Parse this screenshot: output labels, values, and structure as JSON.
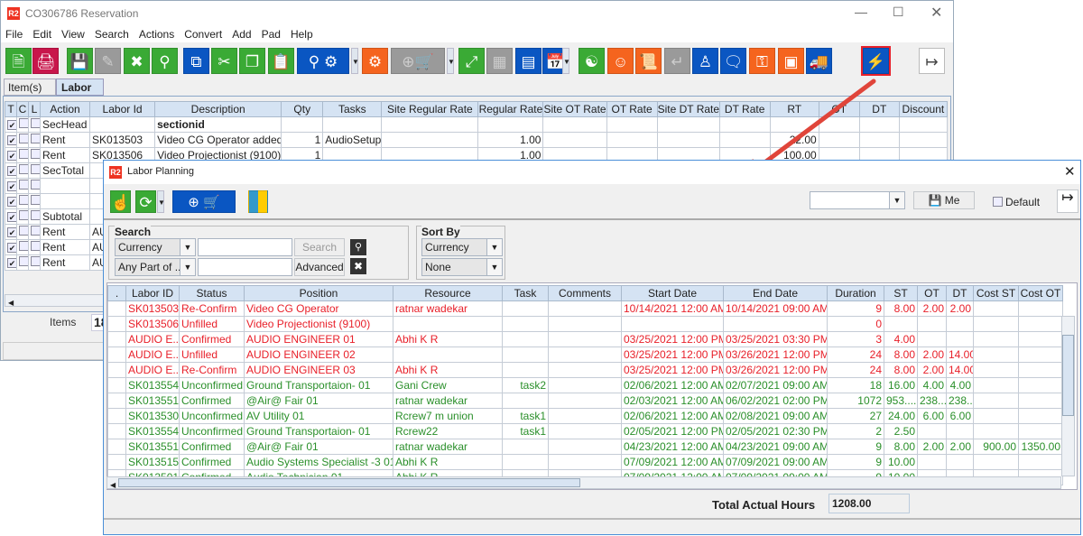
{
  "main_window": {
    "title": "CO306786 Reservation",
    "logo": "R2",
    "menu": [
      "File",
      "Edit",
      "View",
      "Search",
      "Actions",
      "Convert",
      "Add",
      "Pad",
      "Help"
    ],
    "toolbar_icons": [
      "new-document",
      "print",
      "save",
      "edit",
      "delete",
      "search",
      "copy-zero",
      "cut",
      "copy",
      "paste",
      "search-crew",
      "gears",
      "add-po-cart",
      "expand",
      "grid",
      "message",
      "calendar",
      "hierarchy",
      "smiley",
      "scroll",
      "return",
      "worker",
      "chat-zero",
      "coins-add",
      "safe",
      "delivery-truck",
      "lightning",
      "exit"
    ],
    "tabs": [
      "Item(s)",
      "Labor"
    ],
    "active_tab": "Labor",
    "table": {
      "columns": [
        "T",
        "C",
        "L",
        "Action",
        "Labor Id",
        "Description",
        "Qty",
        "Tasks",
        "Site Regular Rate",
        "Regular Rate",
        "Site OT Rate",
        "OT Rate",
        "Site DT Rate",
        "DT Rate",
        "RT",
        "OT",
        "DT",
        "Discount"
      ],
      "rows": [
        {
          "t": true,
          "action": "SecHead",
          "labor_id": "",
          "description": "sectionid",
          "qty": "",
          "tasks": "",
          "regular_rate": "",
          "rt": ""
        },
        {
          "t": true,
          "action": "Rent",
          "labor_id": "SK013503",
          "description": "Video CG Operator added",
          "qty": "1",
          "tasks": "AudioSetup",
          "regular_rate": "1.00",
          "rt": "22.00"
        },
        {
          "t": true,
          "action": "Rent",
          "labor_id": "SK013506",
          "description": "Video Projectionist (9100)",
          "qty": "1",
          "tasks": "",
          "regular_rate": "1.00",
          "rt": "100.00"
        },
        {
          "t": true,
          "action": "SecTotal",
          "labor_id": "",
          "description": "",
          "qty": "",
          "tasks": "",
          "regular_rate": "",
          "rt": ""
        },
        {
          "t": true,
          "action": "",
          "labor_id": "",
          "description": "",
          "qty": "",
          "tasks": "",
          "regular_rate": "",
          "rt": ""
        },
        {
          "t": true,
          "action": "",
          "labor_id": "",
          "description": "",
          "qty": "",
          "tasks": "",
          "regular_rate": "",
          "rt": ""
        },
        {
          "t": true,
          "action": "Subtotal",
          "labor_id": "",
          "description": "",
          "qty": "",
          "tasks": "",
          "regular_rate": "",
          "rt": ""
        },
        {
          "t": true,
          "action": "Rent",
          "labor_id": "AU",
          "description": "",
          "qty": "",
          "tasks": "",
          "regular_rate": "",
          "rt": ""
        },
        {
          "t": true,
          "action": "Rent",
          "labor_id": "AU",
          "description": "",
          "qty": "",
          "tasks": "",
          "regular_rate": "",
          "rt": ""
        },
        {
          "t": true,
          "action": "Rent",
          "labor_id": "AU",
          "description": "",
          "qty": "",
          "tasks": "",
          "regular_rate": "",
          "rt": ""
        }
      ]
    },
    "items_label": "Items",
    "items_value": "18"
  },
  "labor_planning": {
    "title": "Labor Planning",
    "logo": "R2",
    "toolbar_icons": [
      "hand-pointer",
      "refresh",
      "add-po-cart",
      "travel-services"
    ],
    "view_combo": "",
    "save_me_label": "Me",
    "default_label": "Default",
    "default_checked": false,
    "search": {
      "group_label": "Search",
      "field1": "Currency",
      "field2": "Any Part of ...",
      "value1": "",
      "value2": "",
      "search_label": "Search",
      "advanced_label": "Advanced"
    },
    "sort": {
      "group_label": "Sort By",
      "field1": "Currency",
      "field2": "None"
    },
    "columns": [
      ".",
      "Labor ID",
      "Status",
      "Position",
      "Resource",
      "Task",
      "Comments",
      "Start Date",
      "End Date",
      "Duration",
      "ST",
      "OT",
      "DT",
      "Cost ST",
      "Cost OT"
    ],
    "rows": [
      {
        "color": "red",
        "cells": [
          "",
          "SK013503",
          "Re-Confirm",
          "Video CG Operator",
          "ratnar wadekar",
          "",
          "",
          "10/14/2021 12:00 AM",
          "10/14/2021 09:00 AM",
          "9",
          "8.00",
          "2.00",
          "2.00",
          "",
          ""
        ]
      },
      {
        "color": "red",
        "cells": [
          "",
          "SK013506",
          "Unfilled",
          "Video Projectionist (9100)",
          "",
          "",
          "",
          "",
          "",
          "0",
          "",
          "",
          "",
          "",
          ""
        ]
      },
      {
        "color": "red",
        "cells": [
          "",
          "AUDIO E...",
          "Confirmed",
          "AUDIO ENGINEER 01",
          "Abhi K R",
          "",
          "",
          "03/25/2021 12:00 PM",
          "03/25/2021 03:30 PM",
          "3",
          "4.00",
          "",
          "",
          "",
          ""
        ]
      },
      {
        "color": "red",
        "cells": [
          "",
          "AUDIO E...",
          "Unfilled",
          "AUDIO ENGINEER 02",
          "",
          "",
          "",
          "03/25/2021 12:00 PM",
          "03/26/2021 12:00 PM",
          "24",
          "8.00",
          "2.00",
          "14.00",
          "",
          ""
        ]
      },
      {
        "color": "red",
        "cells": [
          "",
          "AUDIO E...",
          "Re-Confirm",
          "AUDIO ENGINEER 03",
          "Abhi K R",
          "",
          "",
          "03/25/2021 12:00 PM",
          "03/26/2021 12:00 PM",
          "24",
          "8.00",
          "2.00",
          "14.00",
          "",
          ""
        ]
      },
      {
        "color": "green",
        "cells": [
          "",
          "SK013554",
          "Unconfirmed",
          "Ground Transportaion- 01",
          "Gani Crew",
          "task2",
          "",
          "02/06/2021 12:00 AM",
          "02/07/2021 09:00 AM",
          "18",
          "16.00",
          "4.00",
          "4.00",
          "",
          ""
        ]
      },
      {
        "color": "green",
        "cells": [
          "",
          "SK013551",
          "Confirmed",
          "@Air@ Fair 01",
          "ratnar wadekar",
          "",
          "",
          "02/03/2021 12:00 AM",
          "06/02/2021 02:00 PM",
          "1072",
          "953....",
          "238...",
          "238...",
          "",
          ""
        ]
      },
      {
        "color": "green",
        "cells": [
          "",
          "SK013530",
          "Unconfirmed",
          "AV Utility 01",
          "Rcrew7 m union",
          "task1",
          "",
          "02/06/2021 12:00 AM",
          "02/08/2021 09:00 AM",
          "27",
          "24.00",
          "6.00",
          "6.00",
          "",
          ""
        ]
      },
      {
        "color": "green",
        "cells": [
          "",
          "SK013554",
          "Unconfirmed",
          "Ground Transportaion- 01",
          "Rcrew22",
          "task1",
          "",
          "02/05/2021 12:00 PM",
          "02/05/2021 02:30 PM",
          "2",
          "2.50",
          "",
          "",
          "",
          ""
        ]
      },
      {
        "color": "green",
        "cells": [
          "",
          "SK013551",
          "Confirmed",
          "@Air@ Fair 01",
          "ratnar wadekar",
          "",
          "",
          "04/23/2021 12:00 AM",
          "04/23/2021 09:00 AM",
          "9",
          "8.00",
          "2.00",
          "2.00",
          "900.00",
          "1350.00"
        ]
      },
      {
        "color": "green",
        "cells": [
          "",
          "SK013515",
          "Confirmed",
          "Audio Systems Specialist -3 01",
          "Abhi K R",
          "",
          "",
          "07/09/2021 12:00 AM",
          "07/09/2021 09:00 AM",
          "9",
          "10.00",
          "",
          "",
          "",
          ""
        ]
      },
      {
        "color": "green",
        "cells": [
          "",
          "SK013501",
          "Confirmed",
          "Audio Technician 01",
          "Abhi K R",
          "",
          "",
          "07/09/2021 12:00 AM",
          "07/09/2021 09:00 AM",
          "9",
          "10.00",
          "",
          "",
          "",
          ""
        ]
      }
    ],
    "total_label": "Total Actual Hours",
    "total_value": "1208.00"
  },
  "colors": {
    "red_rows": "#e8202a",
    "green_rows": "#2a8f2a",
    "header": "#d5e3f3",
    "highlight_border": "#e8202a",
    "arrow": "#e0453a"
  }
}
